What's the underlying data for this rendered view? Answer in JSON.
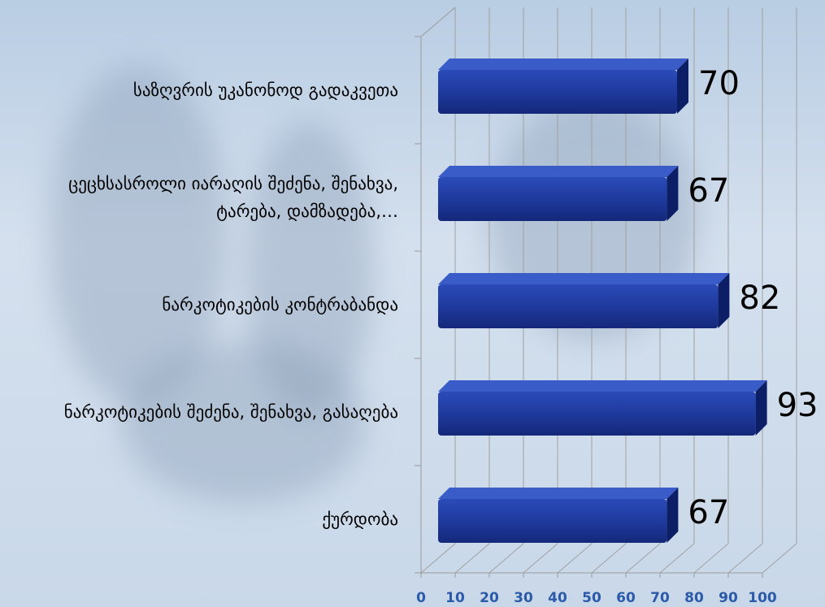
{
  "chart_data": {
    "type": "bar3d_horizontal",
    "categories": [
      "საზღვრის უკანონოდ გადაკვეთა",
      "ცეცხსასროლი იარაღის შეძენა, შენახვა, ტარება, დამზადება,…",
      "ნარკოტიკების კონტრაბანდა",
      "ნარკოტიკების შეძენა, შენახვა, გასაღება",
      "ქურდობა"
    ],
    "values": [
      70,
      67,
      82,
      93,
      67
    ],
    "color": "#1f3a9e",
    "xlim": [
      0,
      100
    ],
    "xticks": [
      0,
      10,
      20,
      30,
      40,
      50,
      60,
      70,
      80,
      90,
      100
    ],
    "grid": true
  }
}
